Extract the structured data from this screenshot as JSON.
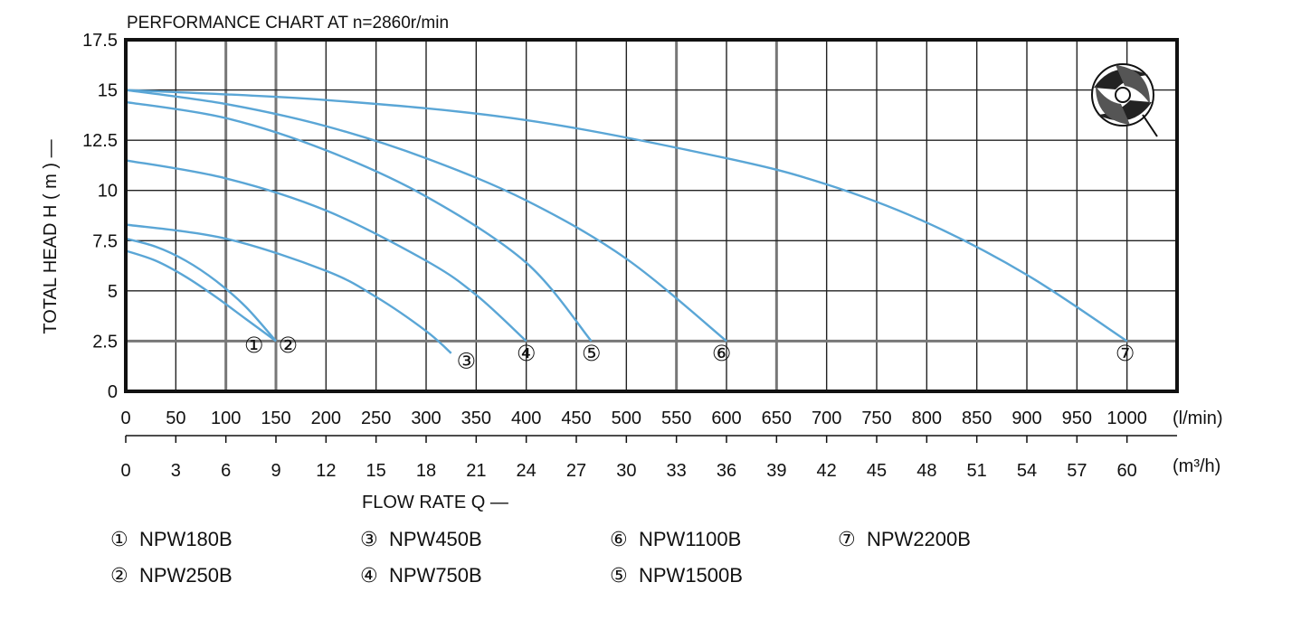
{
  "chart_data": {
    "type": "line",
    "title": "PERFORMANCE  CHART  AT  n=2860r/min",
    "ylabel": "TOTAL HEAD  H ( m ) —",
    "xlabel": "FLOW  RATE  Q  —",
    "x_unit": "(l/min)",
    "x2_unit": "(m³/h)",
    "ylim": [
      0,
      17.5
    ],
    "xlim": [
      0,
      1050
    ],
    "y_ticks": [
      "0",
      "2.5",
      "5",
      "7.5",
      "10",
      "12.5",
      "15",
      "17.5"
    ],
    "x_ticks": [
      "0",
      "50",
      "100",
      "150",
      "200",
      "250",
      "300",
      "350",
      "400",
      "450",
      "500",
      "550",
      "600",
      "650",
      "700",
      "750",
      "800",
      "850",
      "900",
      "950",
      "1000"
    ],
    "x2_ticks": [
      "0",
      "3",
      "6",
      "9",
      "12",
      "15",
      "18",
      "21",
      "24",
      "27",
      "30",
      "33",
      "36",
      "39",
      "42",
      "45",
      "48",
      "51",
      "54",
      "57",
      "60"
    ],
    "grid": true,
    "curve_color": "#5aa6d6",
    "series": [
      {
        "marker": "①",
        "x": [
          0,
          30,
          60,
          90,
          120,
          150
        ],
        "y": [
          7.0,
          6.5,
          5.7,
          4.7,
          3.6,
          2.5
        ],
        "label_at": [
          128,
          2.3
        ]
      },
      {
        "marker": "②",
        "x": [
          0,
          30,
          60,
          90,
          120,
          150
        ],
        "y": [
          7.6,
          7.2,
          6.5,
          5.5,
          4.2,
          2.5
        ],
        "label_at": [
          162,
          2.3
        ]
      },
      {
        "marker": "③",
        "x": [
          0,
          100,
          200,
          250,
          300,
          325
        ],
        "y": [
          8.3,
          7.6,
          6.0,
          4.7,
          3.0,
          1.9
        ],
        "label_at": [
          340,
          1.5
        ]
      },
      {
        "marker": "④",
        "x": [
          0,
          100,
          200,
          300,
          350,
          400
        ],
        "y": [
          11.5,
          10.6,
          9.0,
          6.5,
          4.8,
          2.5
        ],
        "label_at": [
          400,
          1.9
        ]
      },
      {
        "marker": "⑤",
        "x": [
          0,
          100,
          200,
          300,
          400,
          465
        ],
        "y": [
          14.4,
          13.6,
          12.0,
          9.7,
          6.4,
          2.5
        ],
        "label_at": [
          465,
          1.9
        ]
      },
      {
        "marker": "⑥",
        "x": [
          0,
          100,
          200,
          300,
          400,
          500,
          600
        ],
        "y": [
          15.0,
          14.3,
          13.2,
          11.6,
          9.5,
          6.6,
          2.5
        ],
        "label_at": [
          595,
          1.9
        ]
      },
      {
        "marker": "⑦",
        "x": [
          0,
          200,
          400,
          600,
          700,
          800,
          900,
          1000
        ],
        "y": [
          15.0,
          14.5,
          13.5,
          11.6,
          10.3,
          8.4,
          5.8,
          2.5
        ],
        "label_at": [
          998,
          1.9
        ]
      }
    ]
  },
  "legend": [
    {
      "marker": "①",
      "name": "NPW180B"
    },
    {
      "marker": "②",
      "name": "NPW250B"
    },
    {
      "marker": "③",
      "name": "NPW450B"
    },
    {
      "marker": "④",
      "name": "NPW750B"
    },
    {
      "marker": "⑥",
      "name": "NPW1100B"
    },
    {
      "marker": "⑤",
      "name": "NPW1500B"
    },
    {
      "marker": "⑦",
      "name": "NPW2200B"
    }
  ]
}
